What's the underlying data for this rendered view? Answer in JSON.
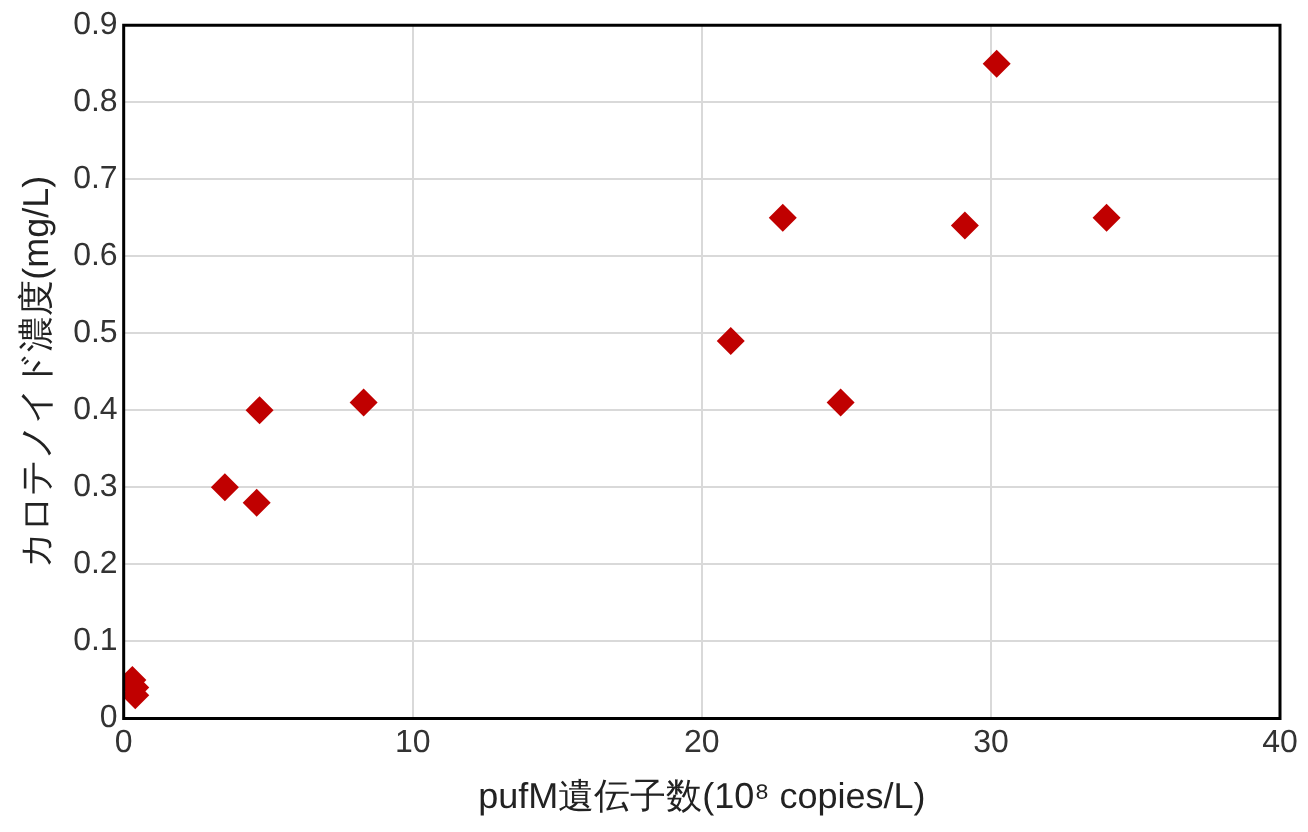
{
  "chart_data": {
    "type": "scatter",
    "xlabel": "pufM遺伝子数(10⁸ copies/L)",
    "ylabel": "カロテノイド濃度(mg/L)",
    "x": [
      0.3,
      0.4,
      0.4,
      3.5,
      4.6,
      4.7,
      8.3,
      21.0,
      22.8,
      24.8,
      29.1,
      30.2,
      34.0
    ],
    "series": [
      {
        "color": "#c00000",
        "values": [
          0.05,
          0.04,
          0.03,
          0.3,
          0.28,
          0.4,
          0.41,
          0.49,
          0.65,
          0.41,
          0.64,
          0.85,
          0.65
        ]
      }
    ],
    "xlim": [
      0,
      40
    ],
    "xticks": [
      0,
      10,
      20,
      30,
      40
    ],
    "ylim": [
      0,
      0.9
    ],
    "yticks": [
      0,
      0.1,
      0.2,
      0.3,
      0.4,
      0.5,
      0.6,
      0.7,
      0.8,
      0.9
    ],
    "grid": true,
    "legend": false,
    "marker": "diamond"
  }
}
